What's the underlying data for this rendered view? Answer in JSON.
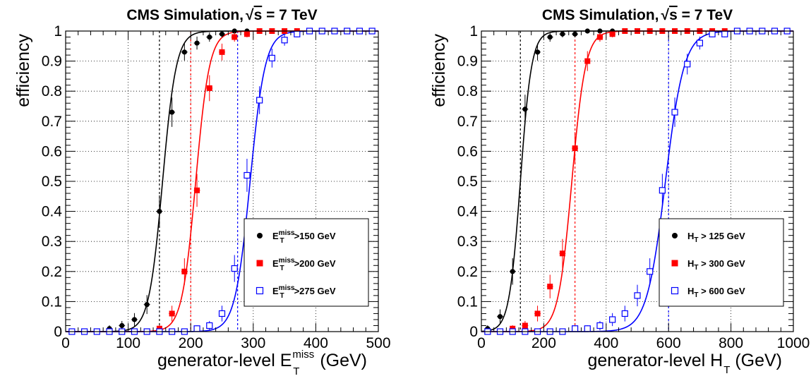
{
  "chart_data": [
    {
      "type": "scatter",
      "title": {
        "prefix": "CMS Simulation,",
        "sqrt": "√",
        "s": "s",
        "suffix": " = 7 TeV"
      },
      "xlabel": {
        "prefix": "generator-level E",
        "sup": "miss",
        "sub": "T",
        "suffix": " (GeV)"
      },
      "ylabel": "efficiency",
      "xlim": [
        0,
        500
      ],
      "ylim": [
        0,
        1
      ],
      "xticks": [
        0,
        100,
        200,
        300,
        400,
        500
      ],
      "yticks": [
        0,
        0.1,
        0.2,
        0.3,
        0.4,
        0.5,
        0.6,
        0.7,
        0.8,
        0.9,
        1
      ],
      "grid": true,
      "legend_position": "lower-right",
      "series": [
        {
          "legend": {
            "base": "E",
            "sup": "miss",
            "sub": "T",
            "rest": ">150 GeV"
          },
          "color": "#000000",
          "marker": "filled-circle",
          "threshold": 150,
          "fit": {
            "mid": 155,
            "width": 11
          },
          "x": [
            10,
            30,
            50,
            70,
            90,
            110,
            130,
            150,
            170,
            190,
            210,
            230,
            250,
            270,
            290,
            310,
            330,
            350,
            370,
            390,
            410,
            430,
            450,
            470,
            490
          ],
          "y": [
            0.0,
            0.0,
            0.0,
            0.01,
            0.02,
            0.04,
            0.09,
            0.4,
            0.73,
            0.93,
            0.96,
            0.98,
            0.99,
            1.0,
            1.0,
            1.0,
            1.0,
            1.0,
            1.0,
            1.0,
            1.0,
            1.0,
            1.0,
            1.0,
            1.0
          ]
        },
        {
          "legend": {
            "base": "E",
            "sup": "miss",
            "sub": "T",
            "rest": ">200 GeV"
          },
          "color": "#ff0000",
          "marker": "filled-square",
          "threshold": 200,
          "fit": {
            "mid": 208,
            "width": 11
          },
          "x": [
            10,
            30,
            50,
            70,
            90,
            110,
            130,
            150,
            170,
            190,
            210,
            230,
            250,
            270,
            290,
            310,
            330,
            350,
            370,
            390,
            410,
            430,
            450,
            470,
            490
          ],
          "y": [
            0.0,
            0.0,
            0.0,
            0.0,
            0.0,
            0.0,
            0.0,
            0.01,
            0.06,
            0.2,
            0.47,
            0.81,
            0.93,
            0.98,
            0.99,
            1.0,
            1.0,
            1.0,
            1.0,
            1.0,
            1.0,
            1.0,
            1.0,
            1.0,
            1.0
          ]
        },
        {
          "legend": {
            "base": "E",
            "sup": "miss",
            "sub": "T",
            "rest": ">275 GeV"
          },
          "color": "#0000ff",
          "marker": "open-square",
          "threshold": 275,
          "fit": {
            "mid": 295,
            "width": 12
          },
          "x": [
            10,
            30,
            50,
            70,
            90,
            110,
            130,
            150,
            170,
            190,
            210,
            230,
            250,
            270,
            290,
            310,
            330,
            350,
            370,
            390,
            410,
            430,
            450,
            470,
            490
          ],
          "y": [
            0.0,
            0.0,
            0.0,
            0.0,
            0.0,
            0.0,
            0.0,
            0.0,
            0.0,
            0.0,
            0.01,
            0.02,
            0.06,
            0.21,
            0.52,
            0.77,
            0.91,
            0.97,
            0.99,
            1.0,
            1.0,
            1.0,
            1.0,
            1.0,
            1.0
          ]
        }
      ]
    },
    {
      "type": "scatter",
      "title": {
        "prefix": "CMS Simulation,",
        "sqrt": "√",
        "s": "s",
        "suffix": " = 7 TeV"
      },
      "xlabel": {
        "prefix": "generator-level H",
        "sup": "",
        "sub": "T",
        "suffix": " (GeV)"
      },
      "ylabel": "efficiency",
      "xlim": [
        0,
        1000
      ],
      "ylim": [
        0,
        1
      ],
      "xticks": [
        0,
        200,
        400,
        600,
        800,
        1000
      ],
      "yticks": [
        0,
        0.1,
        0.2,
        0.3,
        0.4,
        0.5,
        0.6,
        0.7,
        0.8,
        0.9,
        1
      ],
      "grid": true,
      "legend_position": "lower-right",
      "series": [
        {
          "legend": {
            "base": "H",
            "sup": "",
            "sub": "T",
            "rest": " > 125 GeV"
          },
          "color": "#000000",
          "marker": "filled-circle",
          "threshold": 125,
          "fit": {
            "mid": 125,
            "width": 18
          },
          "x": [
            20,
            60,
            100,
            140,
            180,
            220,
            260,
            300,
            340,
            380,
            420,
            460,
            500,
            540,
            580,
            620,
            660,
            700,
            740,
            780,
            820,
            860,
            900,
            940,
            980
          ],
          "y": [
            0.01,
            0.05,
            0.2,
            0.74,
            0.93,
            0.98,
            0.99,
            0.99,
            1.0,
            1.0,
            1.0,
            1.0,
            1.0,
            1.0,
            1.0,
            1.0,
            1.0,
            1.0,
            1.0,
            1.0,
            1.0,
            1.0,
            1.0,
            1.0,
            1.0
          ]
        },
        {
          "legend": {
            "base": "H",
            "sup": "",
            "sub": "T",
            "rest": " > 300 GeV"
          },
          "color": "#ff0000",
          "marker": "filled-square",
          "threshold": 300,
          "fit": {
            "mid": 290,
            "width": 22
          },
          "x": [
            20,
            60,
            100,
            140,
            180,
            220,
            260,
            300,
            340,
            380,
            420,
            460,
            500,
            540,
            580,
            620,
            660,
            700,
            740,
            780,
            820,
            860,
            900,
            940,
            980
          ],
          "y": [
            0.0,
            0.0,
            0.01,
            0.02,
            0.06,
            0.15,
            0.26,
            0.61,
            0.9,
            0.98,
            0.99,
            1.0,
            1.0,
            1.0,
            1.0,
            1.0,
            1.0,
            1.0,
            1.0,
            1.0,
            1.0,
            1.0,
            1.0,
            1.0,
            1.0
          ]
        },
        {
          "legend": {
            "base": "H",
            "sup": "",
            "sub": "T",
            "rest": " > 600 GeV"
          },
          "color": "#0000ff",
          "marker": "open-square",
          "threshold": 600,
          "fit": {
            "mid": 590,
            "width": 30
          },
          "x": [
            20,
            60,
            100,
            140,
            180,
            220,
            260,
            300,
            340,
            380,
            420,
            460,
            500,
            540,
            580,
            620,
            660,
            700,
            740,
            780,
            820,
            860,
            900,
            940,
            980
          ],
          "y": [
            0.0,
            0.0,
            0.0,
            0.0,
            0.0,
            0.0,
            0.0,
            0.01,
            0.01,
            0.02,
            0.04,
            0.06,
            0.12,
            0.2,
            0.47,
            0.73,
            0.89,
            0.96,
            0.99,
            0.99,
            1.0,
            1.0,
            1.0,
            1.0,
            1.0
          ]
        }
      ]
    }
  ]
}
